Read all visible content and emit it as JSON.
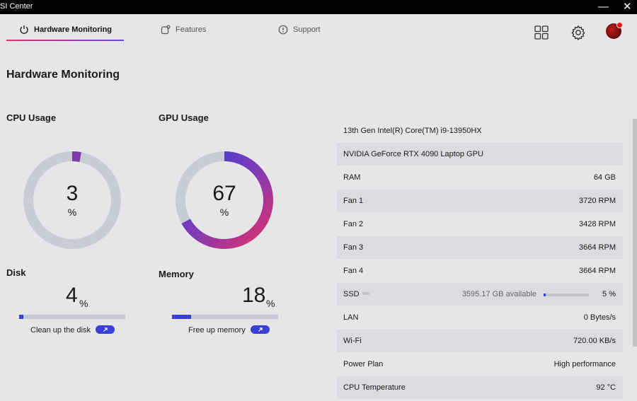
{
  "window": {
    "title": "SI Center",
    "minimize": "—",
    "close": "✕"
  },
  "nav": {
    "tabs": [
      {
        "label": "Hardware Monitoring",
        "icon": "power-icon",
        "active": true
      },
      {
        "label": "Features",
        "icon": "features-icon",
        "active": false
      },
      {
        "label": "Support",
        "icon": "info-icon",
        "active": false
      }
    ],
    "accent_gradient": [
      "#e0306a",
      "#6a4bd8"
    ]
  },
  "page": {
    "title": "Hardware Monitoring"
  },
  "cpu": {
    "title": "CPU Usage",
    "value": "3",
    "unit": "%",
    "percent": 3
  },
  "gpu": {
    "title": "GPU Usage",
    "value": "67",
    "unit": "%",
    "percent": 67
  },
  "disk": {
    "title": "Disk",
    "value": "4",
    "unit": "%",
    "percent": 4,
    "action_label": "Clean up the disk",
    "action_icon": "arrow-up-right-icon"
  },
  "memory": {
    "title": "Memory",
    "value": "18",
    "unit": "%",
    "percent": 18,
    "action_label": "Free up memory",
    "action_icon": "arrow-up-right-icon"
  },
  "info": [
    {
      "label": "13th Gen Intel(R) Core(TM) i9-13950HX",
      "value": ""
    },
    {
      "label": "NVIDIA GeForce RTX 4090 Laptop GPU",
      "value": ""
    },
    {
      "label": "RAM",
      "value": "64 GB"
    },
    {
      "label": "Fan 1",
      "value": "3720 RPM"
    },
    {
      "label": "Fan 2",
      "value": "3428 RPM"
    },
    {
      "label": "Fan 3",
      "value": "3664 RPM"
    },
    {
      "label": "Fan 4",
      "value": "3664 RPM"
    },
    {
      "label": "SSD",
      "value": "5 %",
      "available": "3595.17 GB available",
      "percent": 5
    },
    {
      "label": "LAN",
      "value": "0 Bytes/s"
    },
    {
      "label": "Wi-Fi",
      "value": "720.00 KB/s"
    },
    {
      "label": "Power Plan",
      "value": "High performance"
    },
    {
      "label": "CPU Temperature",
      "value": "92 °C"
    }
  ],
  "colors": {
    "bar_fill": "#3a3fd6",
    "ring_track": "#c9ccd4",
    "cpu_ring": "#7a3aa8",
    "gpu_gradient": [
      "#e0306a",
      "#7c3bb8",
      "#3a3fd6"
    ]
  }
}
